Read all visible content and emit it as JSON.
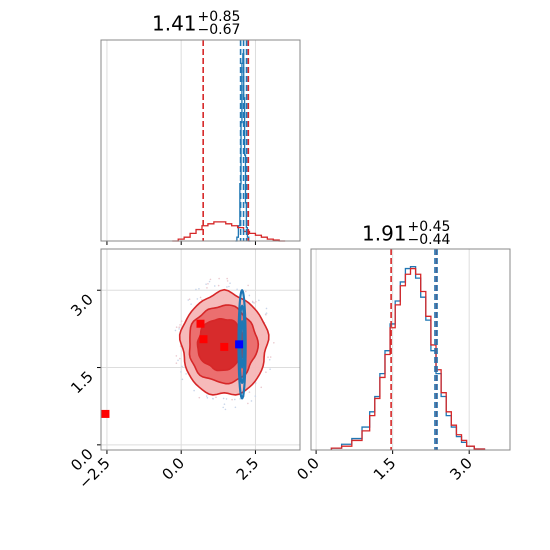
{
  "chart_data": {
    "type": "corner",
    "parameters": 2,
    "colors": {
      "blue": "#1f77b4",
      "red": "#d62728",
      "marker_blue": "#0000ff",
      "marker_red": "#ff0000"
    },
    "panels": [
      {
        "id": "hist-param1",
        "type": "histogram",
        "title": {
          "value": "1.41",
          "plus": "+0.85",
          "minus": "−0.67"
        },
        "xlim": [
          -2.7,
          4.0
        ],
        "show_x_ticklabels": false,
        "red_quantile_lines": [
          0.74,
          2.26
        ],
        "blue_quantile_lines": [
          2.0,
          2.1,
          2.2
        ],
        "series": [
          {
            "name": "",
            "color": "#1f77b4",
            "x": [
              1.85,
              1.9,
              1.95,
              2.0,
              2.03,
              2.06,
              2.09,
              2.12,
              2.15,
              2.18,
              2.21,
              2.25,
              2.3
            ],
            "height": [
              0.0,
              0.02,
              0.08,
              0.3,
              0.62,
              0.93,
              0.98,
              0.75,
              0.45,
              0.2,
              0.07,
              0.02,
              0.0
            ]
          },
          {
            "name": "",
            "color": "#d62728",
            "x": [
              -0.2,
              0.0,
              0.2,
              0.4,
              0.6,
              0.8,
              1.0,
              1.2,
              1.4,
              1.6,
              1.8,
              2.0,
              2.2,
              2.4,
              2.6,
              2.8,
              3.0,
              3.2,
              3.4
            ],
            "height": [
              0.0,
              0.01,
              0.02,
              0.04,
              0.06,
              0.08,
              0.09,
              0.1,
              0.1,
              0.09,
              0.08,
              0.07,
              0.05,
              0.04,
              0.03,
              0.02,
              0.01,
              0.005,
              0.0
            ]
          }
        ]
      },
      {
        "id": "hist-param2",
        "type": "histogram",
        "title": {
          "value": "1.91",
          "plus": "+0.45",
          "minus": "−0.44"
        },
        "xlim": [
          -0.1,
          3.8
        ],
        "xticks": [
          0.0,
          1.5,
          3.0
        ],
        "xtick_labels": [
          "0.0",
          "1.5",
          "3.0"
        ],
        "red_quantile_lines": [
          1.47,
          2.36
        ],
        "blue_quantile_lines": [
          2.33,
          2.37
        ],
        "series": [
          {
            "name": "",
            "color": "#1f77b4",
            "x": [
              0.4,
              0.6,
              0.8,
              1.0,
              1.1,
              1.2,
              1.3,
              1.4,
              1.5,
              1.6,
              1.7,
              1.8,
              1.9,
              2.0,
              2.1,
              2.2,
              2.3,
              2.4,
              2.5,
              2.6,
              2.7,
              2.8,
              2.9,
              3.0,
              3.2
            ],
            "height": [
              0.01,
              0.03,
              0.06,
              0.12,
              0.2,
              0.28,
              0.4,
              0.52,
              0.66,
              0.78,
              0.88,
              0.95,
              0.96,
              0.9,
              0.8,
              0.68,
              0.52,
              0.4,
              0.28,
              0.18,
              0.12,
              0.07,
              0.04,
              0.02,
              0.005
            ]
          },
          {
            "name": "",
            "color": "#d62728",
            "x": [
              0.4,
              0.6,
              0.8,
              1.0,
              1.1,
              1.2,
              1.3,
              1.4,
              1.5,
              1.6,
              1.7,
              1.8,
              1.9,
              2.0,
              2.1,
              2.2,
              2.3,
              2.4,
              2.5,
              2.6,
              2.7,
              2.8,
              2.9,
              3.0,
              3.2
            ],
            "height": [
              0.01,
              0.02,
              0.05,
              0.1,
              0.18,
              0.27,
              0.38,
              0.5,
              0.64,
              0.76,
              0.86,
              0.92,
              0.95,
              0.92,
              0.83,
              0.7,
              0.55,
              0.42,
              0.3,
              0.2,
              0.13,
              0.08,
              0.05,
              0.02,
              0.005
            ]
          }
        ]
      },
      {
        "id": "scatter-2d",
        "type": "contour",
        "xlim": [
          -2.7,
          4.0
        ],
        "ylim": [
          -0.1,
          3.8
        ],
        "xticks": [
          -2.5,
          0.0,
          2.5
        ],
        "xtick_labels": [
          "−2.5",
          "0.0",
          "2.5"
        ],
        "yticks": [
          0.0,
          1.5,
          3.0
        ],
        "ytick_labels": [
          "0.0",
          "1.5",
          "3.0"
        ],
        "red_contours": [
          {
            "level": 1,
            "cx": 1.45,
            "cy": 1.95,
            "rx": 1.45,
            "ry": 1.0,
            "fill": "#f6b6b6"
          },
          {
            "level": 2,
            "cx": 1.4,
            "cy": 1.95,
            "rx": 1.15,
            "ry": 0.75,
            "fill": "#ea6a6a"
          },
          {
            "level": 3,
            "cx": 1.35,
            "cy": 1.95,
            "rx": 0.8,
            "ry": 0.5,
            "fill": "#d62728"
          }
        ],
        "blue_contours": [
          {
            "cx": 2.05,
            "cy": 1.95,
            "rx": 0.12,
            "ry": 1.05
          },
          {
            "cx": 2.05,
            "cy": 1.95,
            "rx": 0.09,
            "ry": 0.75
          },
          {
            "cx": 2.05,
            "cy": 1.95,
            "rx": 0.05,
            "ry": 0.45
          }
        ],
        "red_markers": [
          [
            0.65,
            2.35
          ],
          [
            0.75,
            2.05
          ],
          [
            1.45,
            1.9
          ],
          [
            -2.55,
            0.6
          ]
        ],
        "blue_markers": [
          [
            1.95,
            1.95
          ]
        ]
      }
    ]
  }
}
